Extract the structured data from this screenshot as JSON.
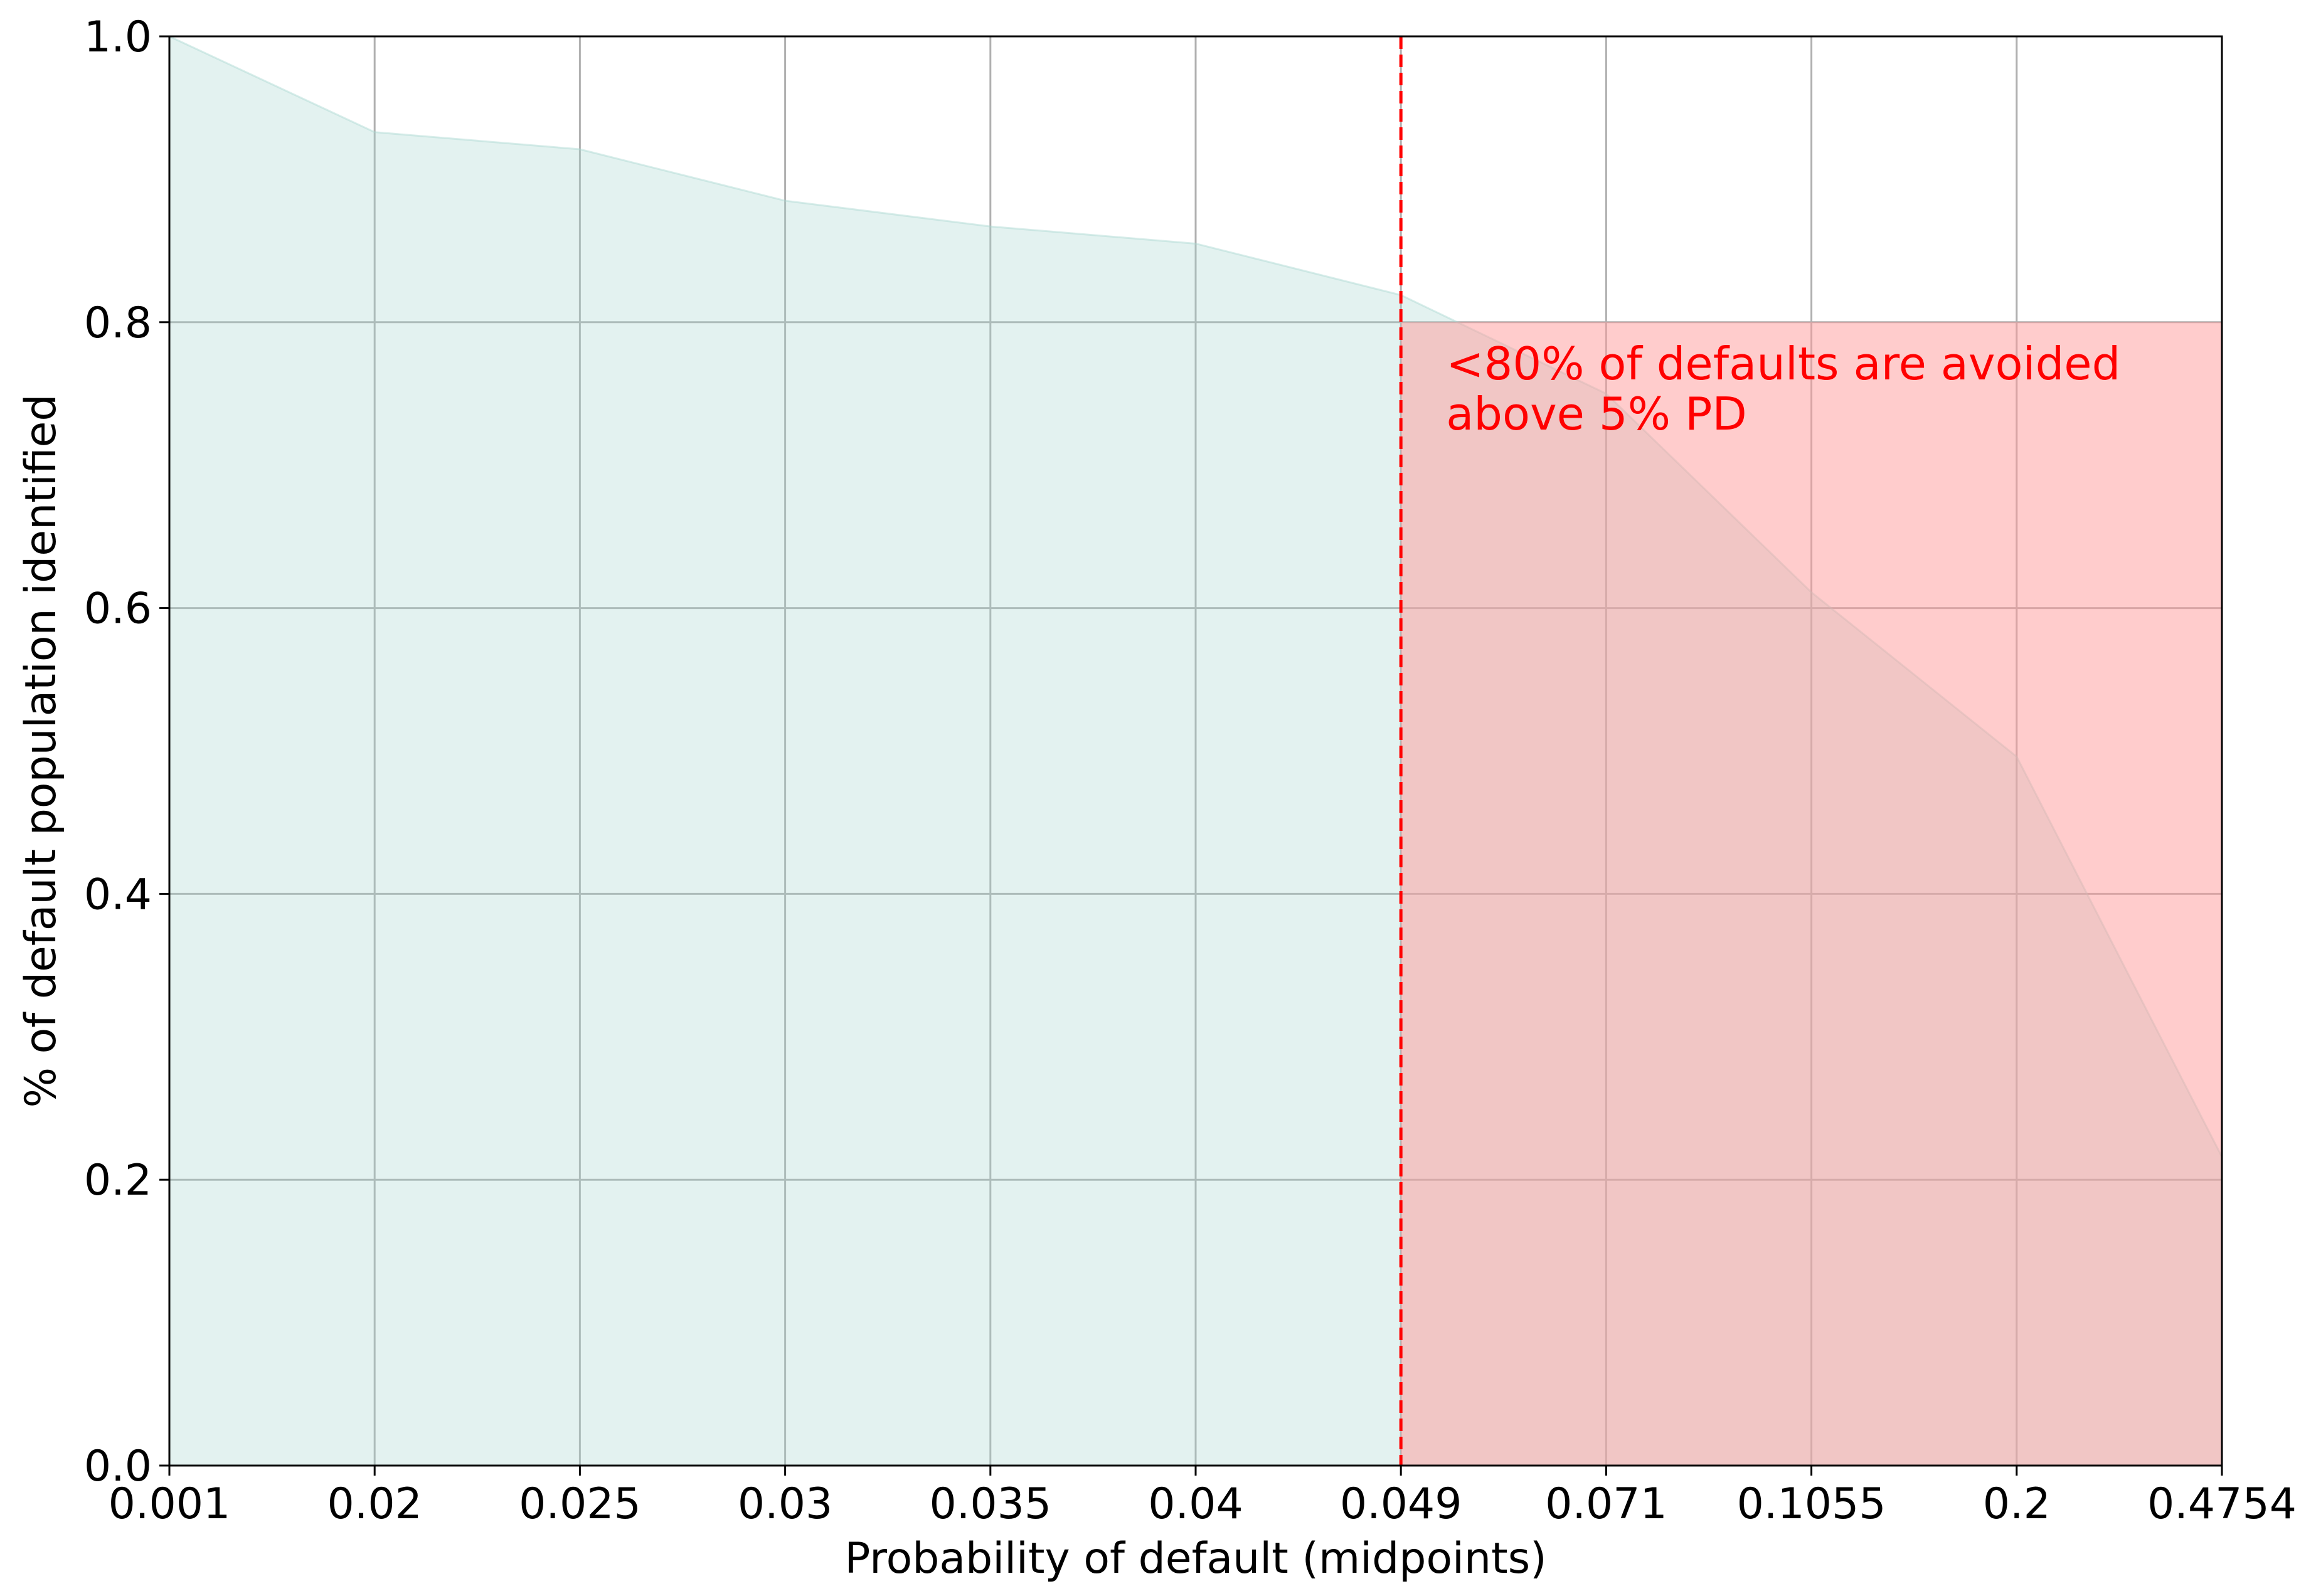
{
  "chart_data": {
    "type": "area",
    "title": "",
    "xlabel": "Probability of default (midpoints)",
    "ylabel": "% of default population identified",
    "x": [
      "0.001",
      "0.02",
      "0.025",
      "0.03",
      "0.035",
      "0.04",
      "0.049",
      "0.071",
      "0.1055",
      "0.2",
      "0.4754"
    ],
    "series": [
      {
        "values": [
          1.0,
          0.933,
          0.921,
          0.885,
          0.867,
          0.855,
          0.819,
          0.75,
          0.611,
          0.496,
          0.216
        ],
        "color": "#a8d8d0"
      }
    ],
    "ylim": [
      0.0,
      1.0
    ],
    "yticks": [
      "0.0",
      "0.2",
      "0.4",
      "0.6",
      "0.8",
      "1.0"
    ],
    "grid": true,
    "threshold_line": {
      "x": "0.049",
      "style": "dashed",
      "color": "#ff0000"
    },
    "shaded_region": {
      "x_from": "0.049",
      "x_to": "0.4754",
      "y_from": 0.0,
      "y_to": 0.8,
      "color": "#ff9999"
    },
    "annotation": {
      "lines": [
        "<80% of defaults are avoided",
        "above 5% PD"
      ],
      "color": "#ff0000",
      "x": "0.049",
      "y": 0.76
    }
  }
}
